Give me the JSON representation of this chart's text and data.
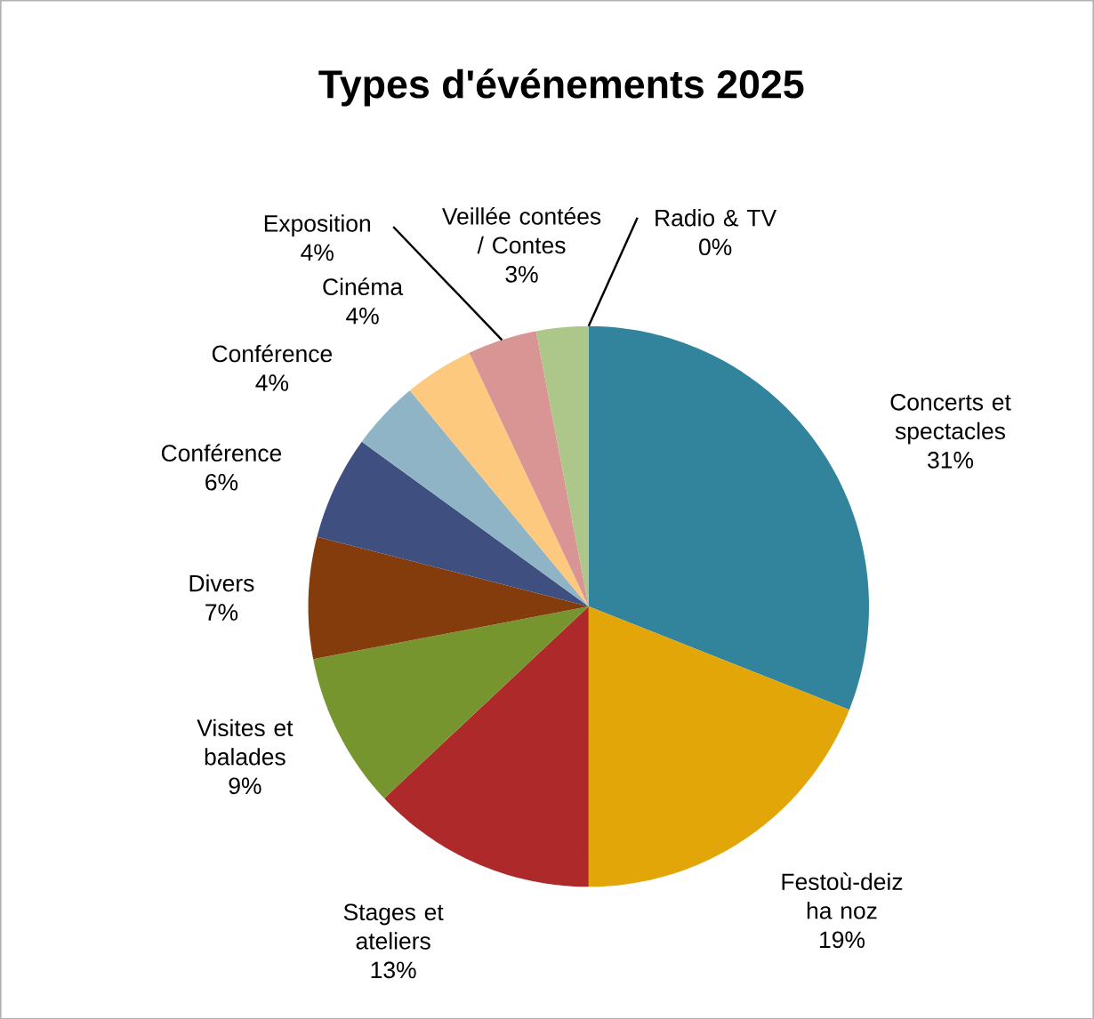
{
  "chart_data": {
    "type": "pie",
    "title": "Types d'événements 2025",
    "categories": [
      "Concerts et spectacles",
      "Festoù-deiz ha noz",
      "Stages et ateliers",
      "Visites et balades",
      "Divers",
      "Conférence",
      "Conférence",
      "Cinéma",
      "Exposition",
      "Veillée contées / Contes",
      "Radio & TV"
    ],
    "values": [
      31,
      19,
      13,
      9,
      7,
      6,
      4,
      4,
      4,
      3,
      0
    ],
    "value_labels": [
      "31%",
      "19%",
      "13%",
      "9%",
      "7%",
      "6%",
      "4%",
      "4%",
      "4%",
      "3%",
      "0%"
    ],
    "colors": [
      "#31849b",
      "#e3a608",
      "#ae2a2a",
      "#77952f",
      "#843c0c",
      "#3f4f7f",
      "#8fb4c5",
      "#fcc97f",
      "#d99594",
      "#adc68a",
      "#c0504d"
    ]
  }
}
